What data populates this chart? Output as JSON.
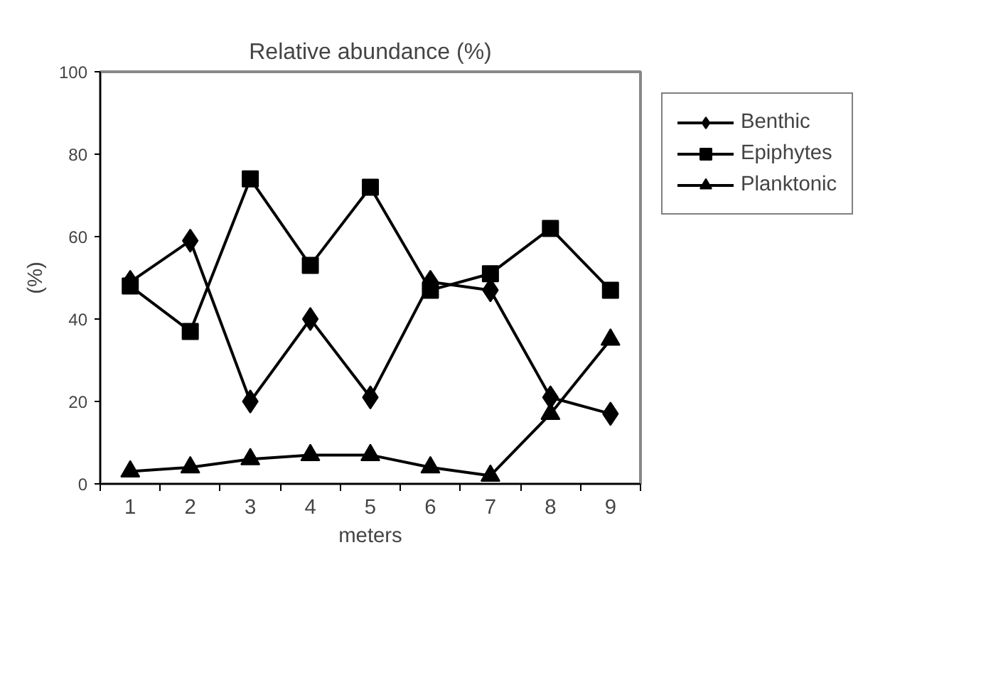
{
  "chart_data": {
    "type": "line",
    "title": "Relative abundance (%)",
    "xlabel": "meters",
    "ylabel": "(%)",
    "categories": [
      "1",
      "2",
      "3",
      "4",
      "5",
      "6",
      "7",
      "8",
      "9"
    ],
    "series": [
      {
        "name": "Benthic",
        "color": "#000000",
        "marker": "diamond",
        "values": [
          49,
          59,
          20,
          40,
          21,
          49,
          47,
          21,
          17
        ]
      },
      {
        "name": "Epiphytes",
        "color": "#000000",
        "marker": "square",
        "values": [
          48,
          37,
          74,
          53,
          72,
          47,
          51,
          62,
          47
        ]
      },
      {
        "name": "Planktonic",
        "color": "#000000",
        "marker": "triangle",
        "values": [
          3,
          4,
          6,
          7,
          7,
          4,
          2,
          17,
          35
        ]
      }
    ],
    "ylim": [
      0,
      100
    ],
    "yticks": [
      0,
      20,
      40,
      60,
      80,
      100
    ],
    "grid": false,
    "legend": "right",
    "line_style": "solid"
  }
}
